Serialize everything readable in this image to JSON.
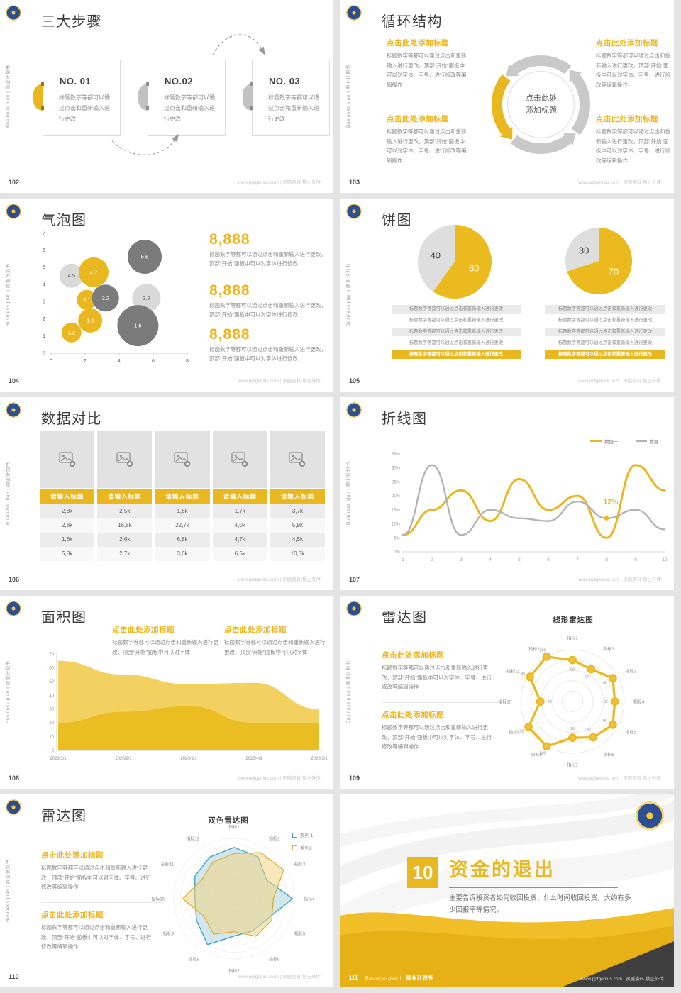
{
  "common": {
    "footer_right": "www.pptgenius.com | 灵感资料 禁止外传",
    "side_label": "Business plan | 商业计划书",
    "placeholder_heading": "点击此处添加标题",
    "placeholder_short": "标题数字等都可以通过点击和重新输入进行更改",
    "placeholder_long": "标题数字等都可以通过点击和重新输入进行更改，顶部“开始”面板中可以对字体、字号、进行修改等编辑操作",
    "placeholder_medium": "标题数字等都可以通过点击和重新输入进行更改，顶部“开始”面板中可以对字体进行修改",
    "placeholder_two_line": "标题数字等都可以通过点击和重新输入进行更改，顶部“开始”面板中可以对字体",
    "colors": {
      "yellow": "#E9B820",
      "light_gray": "#D9D9D9",
      "dark_gray": "#7B7B7B",
      "blue": "#41A3C4"
    }
  },
  "slides": {
    "s102": {
      "page": "102",
      "title": "三大步骤",
      "cards": [
        {
          "no": "NO. 01"
        },
        {
          "no": "NO.02"
        },
        {
          "no": "NO. 03"
        }
      ]
    },
    "s103": {
      "page": "103",
      "title": "循环结构",
      "center_line1": "点击此处",
      "center_line2": "添加标题"
    },
    "s104": {
      "page": "104",
      "title": "气泡图",
      "stat_value": "8,888"
    },
    "s105": {
      "page": "105",
      "title": "饼图"
    },
    "s106": {
      "page": "106",
      "title": "数据对比",
      "headers": [
        "请输入标题",
        "请输入标题",
        "请输入标题",
        "请输入标题",
        "请输入标题"
      ],
      "rows": [
        [
          "2,8k",
          "2,5k",
          "1,6k",
          "1,7k",
          "3,7k"
        ],
        [
          "2,8k",
          "16,8k",
          "22,7k",
          "4,0k",
          "5,9k"
        ],
        [
          "1,6k",
          "2,6k",
          "6,8k",
          "4,7k",
          "4,5k"
        ],
        [
          "5,8k",
          "2,7k",
          "3,6k",
          "6,5k",
          "10,8k"
        ]
      ]
    },
    "s107": {
      "page": "107",
      "title": "折线图"
    },
    "s108": {
      "page": "108",
      "title": "面积图"
    },
    "s109": {
      "page": "109",
      "title": "雷达图",
      "subtitle": "线形雷达图"
    },
    "s110": {
      "page": "110",
      "title": "雷达图",
      "subtitle": "双色雷达图"
    },
    "s111": {
      "page": "111",
      "number": "10",
      "title": "资金的退出",
      "body": "主要告诉投资者如何收回投资，什么时间收回投资，大约有多少回报率等情况。",
      "footer_prefix": "Business plan |",
      "footer_book": "商业计划书"
    }
  },
  "chart_data": [
    {
      "id": "bubble",
      "type": "scatter",
      "title": "气泡图",
      "xlim": [
        0,
        8
      ],
      "ylim": [
        0,
        7
      ],
      "x_ticks": [
        0,
        2,
        4,
        6,
        8
      ],
      "y_ticks": [
        0,
        1,
        2,
        3,
        4,
        5,
        6,
        7
      ],
      "colors": {
        "yellow": "#E9B820",
        "light": "#D9D9D9",
        "dark": "#7B7B7B"
      },
      "points": [
        {
          "x": 1.2,
          "y": 4.5,
          "r": 17,
          "series": "light",
          "label": "4.5"
        },
        {
          "x": 2.5,
          "y": 4.7,
          "r": 21,
          "series": "yellow",
          "label": "4.7"
        },
        {
          "x": 5.5,
          "y": 5.6,
          "r": 24,
          "series": "dark",
          "label": "5.6"
        },
        {
          "x": 2.1,
          "y": 3.1,
          "r": 14,
          "series": "yellow",
          "label": "3.1"
        },
        {
          "x": 3.2,
          "y": 3.2,
          "r": 19,
          "series": "dark",
          "label": "3.2"
        },
        {
          "x": 5.6,
          "y": 3.2,
          "r": 20,
          "series": "light",
          "label": "3.2"
        },
        {
          "x": 5.1,
          "y": 1.6,
          "r": 29,
          "series": "dark",
          "label": "1.6"
        },
        {
          "x": 2.3,
          "y": 1.9,
          "r": 17,
          "series": "yellow",
          "label": "1.9"
        },
        {
          "x": 1.2,
          "y": 1.2,
          "r": 14,
          "series": "yellow",
          "label": "1.2"
        }
      ]
    },
    {
      "id": "pie_left",
      "type": "pie",
      "values": [
        60,
        40
      ],
      "labels": [
        "60",
        "40"
      ],
      "colors": [
        "#EBBA1E",
        "#DEDEDE"
      ],
      "label_colors": [
        "#FFFFFF",
        "#3F3F3F"
      ]
    },
    {
      "id": "pie_right",
      "type": "pie",
      "values": [
        70,
        30
      ],
      "labels": [
        "70",
        "30"
      ],
      "colors": [
        "#EBBA1E",
        "#DEDEDE"
      ],
      "label_colors": [
        "#FFFFFF",
        "#3F3F3F"
      ]
    },
    {
      "id": "line",
      "type": "line",
      "x": [
        1,
        2,
        3,
        4,
        5,
        6,
        7,
        8,
        9,
        10
      ],
      "ylim": [
        0,
        35
      ],
      "y_ticks": [
        "0%",
        "5%",
        "10%",
        "15%",
        "20%",
        "25%",
        "30%",
        "35%"
      ],
      "series": [
        {
          "name": "数据一",
          "color": "#E9B820",
          "width": 3,
          "values": [
            6,
            15,
            22,
            11,
            26,
            15,
            20,
            5,
            31,
            22
          ]
        },
        {
          "name": "数据二",
          "color": "#B3B3B3",
          "width": 2.4,
          "values": [
            6,
            31,
            6,
            15,
            12,
            11,
            18,
            12,
            15,
            8
          ]
        }
      ],
      "annotation": {
        "x": 8,
        "y": 12,
        "text": "12%"
      }
    },
    {
      "id": "area",
      "type": "area",
      "ylim": [
        0,
        70
      ],
      "categories": [
        "2020/1/1",
        "2020/2/1",
        "2020/3/1",
        "2020/4/1",
        "2020/5/1"
      ],
      "series": [
        {
          "color": "#F2CF5B",
          "values": [
            65,
            55,
            48,
            49,
            30
          ]
        },
        {
          "color": "#E9BC20",
          "values": [
            20,
            28,
            32,
            20,
            20
          ]
        }
      ]
    },
    {
      "id": "radar_line",
      "type": "radar",
      "title": "线形雷达图",
      "max": 100,
      "labels": [
        "指标1",
        "指标2",
        "指标3",
        "指标4",
        "指标5",
        "指标6",
        "指标7",
        "指标8",
        "指标9",
        "指标10",
        "指标11",
        "指标12"
      ],
      "series": [
        {
          "color": "#E9B820",
          "values": [
            80,
            72,
            90,
            82,
            90,
            80,
            70,
            100,
            98,
            62,
            95,
            100
          ]
        }
      ]
    },
    {
      "id": "radar_dual",
      "type": "radar",
      "title": "双色雷达图",
      "max": 100,
      "labels": [
        "指标1",
        "指标2",
        "指标3",
        "指标4",
        "指标5",
        "指标6",
        "指标7",
        "指标8",
        "指标9",
        "指标10",
        "指标11",
        "指标12"
      ],
      "series": [
        {
          "name": "系列 1",
          "color": "#41A3C4",
          "fill": "#AED4E4",
          "values": [
            85,
            80,
            62,
            97,
            65,
            62,
            62,
            88,
            72,
            65,
            75,
            80
          ]
        },
        {
          "name": "系列2",
          "color": "#DDB33E",
          "fill": "#F3D683",
          "values": [
            75,
            88,
            95,
            65,
            72,
            72,
            55,
            68,
            58,
            85,
            62,
            70
          ]
        }
      ]
    }
  ]
}
